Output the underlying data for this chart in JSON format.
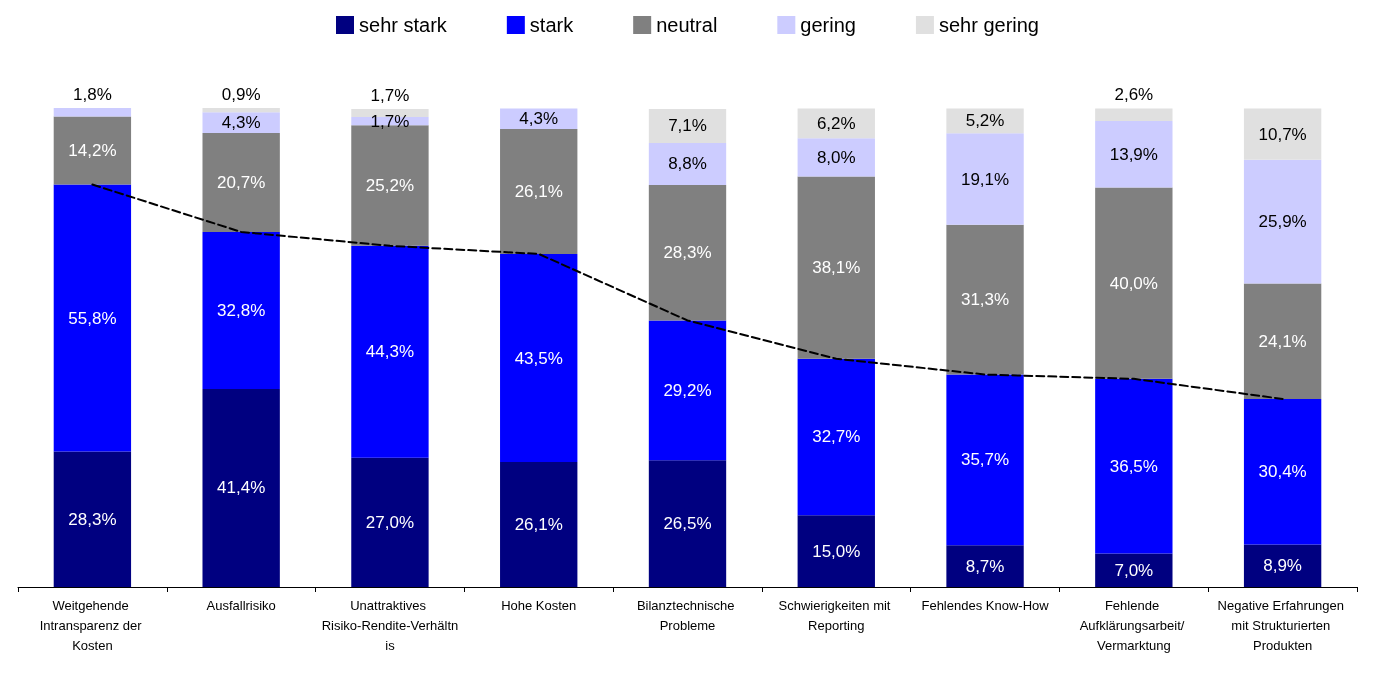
{
  "chart_data": {
    "type": "bar",
    "stacked": true,
    "legend": "top",
    "grid": false,
    "tick_labels": "x",
    "categories": [
      "Weitgehende Intransparenz der Kosten",
      "Ausfallrisiko",
      "Unattraktives Risiko-Rendite-Verhältnis",
      "Hohe Kosten",
      "Bilanztechnische Probleme",
      "Schwierigkeiten mit Reporting",
      "Fehlendes Know-How",
      "Fehlende Aufklärungsarbeit/ Vermarktung",
      "Negative Erfahrungen mit Strukturierten Produkten"
    ],
    "series": [
      {
        "name": "sehr stark",
        "color": "#000080",
        "values": [
          28.3,
          41.4,
          27.0,
          26.1,
          26.5,
          15.0,
          8.7,
          7.0,
          8.9
        ],
        "value_labels": [
          "28,3%",
          "41,4%",
          "27,0%",
          "26,1%",
          "26,5%",
          "15,0%",
          "8,7%",
          "7,0%",
          "8,9%"
        ]
      },
      {
        "name": "stark",
        "color": "#0000ff",
        "values": [
          55.8,
          32.8,
          44.3,
          43.5,
          29.2,
          32.7,
          35.7,
          36.5,
          30.4
        ],
        "value_labels": [
          "55,8%",
          "32,8%",
          "44,3%",
          "43,5%",
          "29,2%",
          "32,7%",
          "35,7%",
          "36,5%",
          "30,4%"
        ]
      },
      {
        "name": "neutral",
        "color": "#808080",
        "values": [
          14.2,
          20.7,
          25.2,
          26.1,
          28.3,
          38.1,
          31.3,
          40.0,
          24.1
        ],
        "value_labels": [
          "14,2%",
          "20,7%",
          "25,2%",
          "26,1%",
          "28,3%",
          "38,1%",
          "31,3%",
          "40,0%",
          "24,1%"
        ]
      },
      {
        "name": "gering",
        "color": "#ccccff",
        "values": [
          1.8,
          4.3,
          1.7,
          4.3,
          8.8,
          8.0,
          19.1,
          13.9,
          25.9
        ],
        "value_labels": [
          "1,8%",
          "4,3%",
          "1,7%",
          "4,3%",
          "8,8%",
          "8,0%",
          "19,1%",
          "13,9%",
          "25,9%"
        ]
      },
      {
        "name": "sehr gering",
        "color": "#e0e0e0",
        "values": [
          null,
          0.9,
          1.7,
          null,
          7.1,
          6.2,
          5.2,
          2.6,
          10.7
        ],
        "value_labels": [
          null,
          "0,9%",
          "1,7%",
          null,
          "7,1%",
          "6,2%",
          "5,2%",
          "2,6%",
          "10,7%"
        ]
      },
      {
        "type": "line",
        "color": "#000000",
        "line_style": "dashed",
        "marker": "none",
        "values": [
          84.1,
          74.2,
          71.3,
          69.6,
          55.7,
          47.7,
          44.4,
          43.5,
          39.3
        ]
      }
    ]
  }
}
